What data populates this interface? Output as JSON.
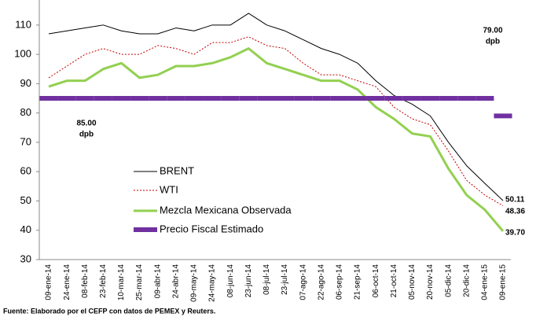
{
  "chart_data": {
    "type": "line",
    "categories": [
      "09-ene-14",
      "24-ene-14",
      "08-feb-14",
      "23-feb-14",
      "10-mar-14",
      "25-mar-14",
      "09-abr-14",
      "24-abr-14",
      "09-may-14",
      "24-may-14",
      "08-jun-14",
      "23-jun-14",
      "08-jul-14",
      "23-jul-14",
      "07-ago-14",
      "22-ago-14",
      "06-sep-14",
      "21-sep-14",
      "06-oct-14",
      "21-oct-14",
      "05-nov-14",
      "20-nov-14",
      "05-dic-14",
      "20-dic-14",
      "04-ene-15",
      "09-ene-15"
    ],
    "series": [
      {
        "name": "BRENT",
        "color": "#000000",
        "style": "solid",
        "values": [
          107,
          108,
          109,
          110,
          108,
          107,
          107,
          109,
          108,
          110,
          110,
          114,
          110,
          108,
          105,
          102,
          100,
          97,
          91,
          86,
          83,
          79,
          70,
          62,
          56,
          50.11
        ]
      },
      {
        "name": "WTI",
        "color": "#c00000",
        "style": "dotted",
        "values": [
          92,
          96,
          100,
          102,
          100,
          100,
          103,
          102,
          100,
          104,
          104,
          106,
          103,
          102,
          97,
          93,
          93,
          91,
          89,
          82,
          78,
          76,
          67,
          57,
          52,
          48.36
        ]
      },
      {
        "name": "Mezcla Mexicana Observada",
        "color": "#92d050",
        "style": "thick",
        "values": [
          89,
          91,
          91,
          95,
          97,
          92,
          93,
          96,
          96,
          97,
          99,
          102,
          97,
          95,
          93,
          91,
          91,
          88,
          82,
          78,
          73,
          72,
          61,
          52,
          47,
          39.7
        ],
        "value_labels": [
          null,
          null,
          null,
          null,
          null,
          null,
          null,
          null,
          null,
          null,
          null,
          null,
          null,
          null,
          null,
          null,
          null,
          null,
          null,
          null,
          null,
          null,
          null,
          null,
          null,
          "39.70"
        ]
      },
      {
        "name": "Precio Fiscal Estimado",
        "color": "#7030a0",
        "style": "step",
        "values": [
          85,
          85,
          85,
          85,
          85,
          85,
          85,
          85,
          85,
          85,
          85,
          85,
          85,
          85,
          85,
          85,
          85,
          85,
          85,
          85,
          85,
          85,
          85,
          85,
          85,
          79
        ]
      }
    ],
    "annotations": [
      "85.00",
      "dpb",
      "79.00",
      "dpb"
    ],
    "ylim": [
      30,
      118
    ],
    "yticks": [
      30,
      40,
      50,
      60,
      70,
      80,
      90,
      100,
      110
    ],
    "source": "Fuente: Elaborado por el CEFP con datos de PEMEX y Reuters."
  }
}
